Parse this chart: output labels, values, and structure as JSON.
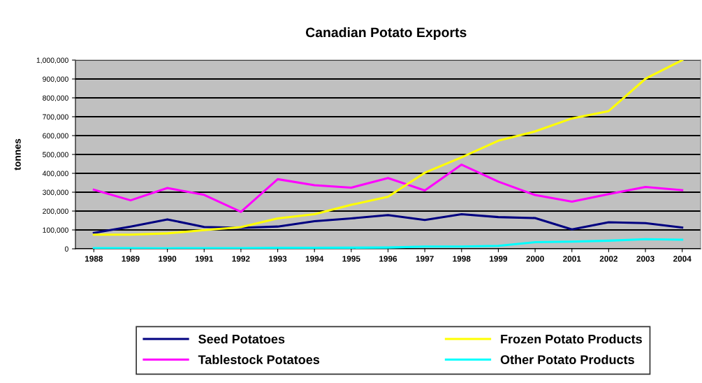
{
  "chart_data": {
    "type": "line",
    "title": "Canadian Potato Exports",
    "ylabel": "tonnes",
    "categories": [
      "1988",
      "1989",
      "1990",
      "1991",
      "1992",
      "1993",
      "1994",
      "1995",
      "1996",
      "1997",
      "1998",
      "1999",
      "2000",
      "2001",
      "2002",
      "2003",
      "2004"
    ],
    "series": [
      {
        "name": "Seed Potatoes",
        "color": "#000080",
        "values": [
          84000,
          118000,
          156000,
          116000,
          111000,
          118000,
          146000,
          161000,
          179000,
          153000,
          183000,
          168000,
          163000,
          103000,
          141000,
          136000,
          113000
        ]
      },
      {
        "name": "Tablestock Potatoes",
        "color": "#ff00ff",
        "values": [
          313000,
          257000,
          322000,
          286000,
          196000,
          369000,
          337000,
          324000,
          375000,
          309000,
          446000,
          356000,
          285000,
          250000,
          290000,
          328000,
          311000
        ]
      },
      {
        "name": "Frozen Potato Products",
        "color": "#ffff00",
        "values": [
          75000,
          75000,
          82000,
          99000,
          115000,
          161000,
          183000,
          233000,
          276000,
          403000,
          485000,
          573000,
          622000,
          691000,
          730000,
          901000,
          1000000
        ]
      },
      {
        "name": "Other Potato Products",
        "color": "#00ffff",
        "values": [
          4000,
          4000,
          3000,
          4000,
          4000,
          5000,
          5000,
          6000,
          7000,
          12000,
          12000,
          16000,
          35000,
          38000,
          43000,
          51000,
          48000
        ]
      }
    ],
    "ylim": [
      0,
      1000000
    ],
    "yticks": [
      0,
      {
        "value": 100000,
        "label": "100,000"
      },
      {
        "value": 200000,
        "label": "200,000"
      },
      {
        "value": 300000,
        "label": "300,000"
      },
      {
        "value": 400000,
        "label": "400,000"
      },
      {
        "value": 500000,
        "label": "500,000"
      },
      {
        "value": 600000,
        "label": "600,000"
      },
      {
        "value": 700000,
        "label": "700,000"
      },
      {
        "value": 800000,
        "label": "800,000"
      },
      {
        "value": 900000,
        "label": "900,000"
      },
      {
        "value": 1000000,
        "label": "1,000,000"
      }
    ],
    "grid": "y",
    "legend": "bottom",
    "marker": "none",
    "line_style": "solid"
  }
}
